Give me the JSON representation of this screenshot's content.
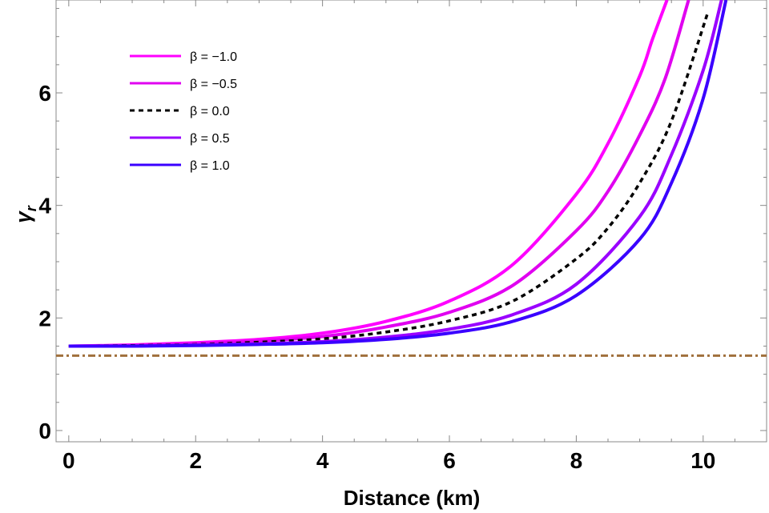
{
  "chart_data": {
    "type": "line",
    "title": "",
    "xlabel": "Distance (km)",
    "ylabel": "γ",
    "ylabel_sub": "r",
    "xlim": [
      -0.2,
      11.0
    ],
    "ylim": [
      -0.2,
      7.65
    ],
    "xticks": [
      0,
      2,
      4,
      6,
      8,
      10
    ],
    "yticks": [
      0,
      2,
      4,
      6
    ],
    "legend_position": "top-left",
    "series": [
      {
        "name": "β = −1.0",
        "color": "#ff00ff",
        "dash": "solid",
        "x": [
          0,
          1,
          2,
          3,
          4,
          5,
          6,
          7,
          8,
          8.5,
          9,
          9.2,
          9.43
        ],
        "y": [
          1.5,
          1.52,
          1.56,
          1.62,
          1.73,
          1.94,
          2.3,
          2.95,
          4.2,
          5.1,
          6.3,
          6.95,
          7.65
        ]
      },
      {
        "name": "β = −0.5",
        "color": "#e000f0",
        "dash": "solid",
        "x": [
          0,
          1,
          2,
          3,
          4,
          5,
          6,
          7,
          8,
          8.5,
          9,
          9.4,
          9.77
        ],
        "y": [
          1.5,
          1.51,
          1.54,
          1.59,
          1.67,
          1.84,
          2.1,
          2.58,
          3.55,
          4.25,
          5.25,
          6.25,
          7.65
        ]
      },
      {
        "name": "β = 0.0",
        "color": "#000000",
        "dash": "dashed",
        "x": [
          0,
          1,
          2,
          3,
          4,
          5,
          6,
          7,
          8,
          8.5,
          9,
          9.5,
          10.08
        ],
        "y": [
          1.5,
          1.51,
          1.53,
          1.57,
          1.63,
          1.75,
          1.95,
          2.3,
          3.05,
          3.6,
          4.4,
          5.5,
          7.45
        ]
      },
      {
        "name": "β = 0.5",
        "color": "#9a00ff",
        "dash": "solid",
        "x": [
          0,
          1,
          2,
          3,
          4,
          5,
          6,
          7,
          8,
          9,
          9.5,
          10.0,
          10.29
        ],
        "y": [
          1.5,
          1.5,
          1.52,
          1.54,
          1.58,
          1.66,
          1.8,
          2.06,
          2.6,
          3.8,
          4.9,
          6.4,
          7.65
        ]
      },
      {
        "name": "β = 1.0",
        "color": "#3a00ff",
        "dash": "solid",
        "x": [
          0,
          1,
          2,
          3,
          4,
          5,
          6,
          7,
          8,
          9,
          9.5,
          10.0,
          10.36
        ],
        "y": [
          1.5,
          1.5,
          1.51,
          1.53,
          1.56,
          1.62,
          1.73,
          1.94,
          2.4,
          3.4,
          4.4,
          5.9,
          7.65
        ]
      }
    ],
    "reference_line": {
      "y": 1.33,
      "color": "#a0703c",
      "dash": "dash-dot"
    }
  }
}
